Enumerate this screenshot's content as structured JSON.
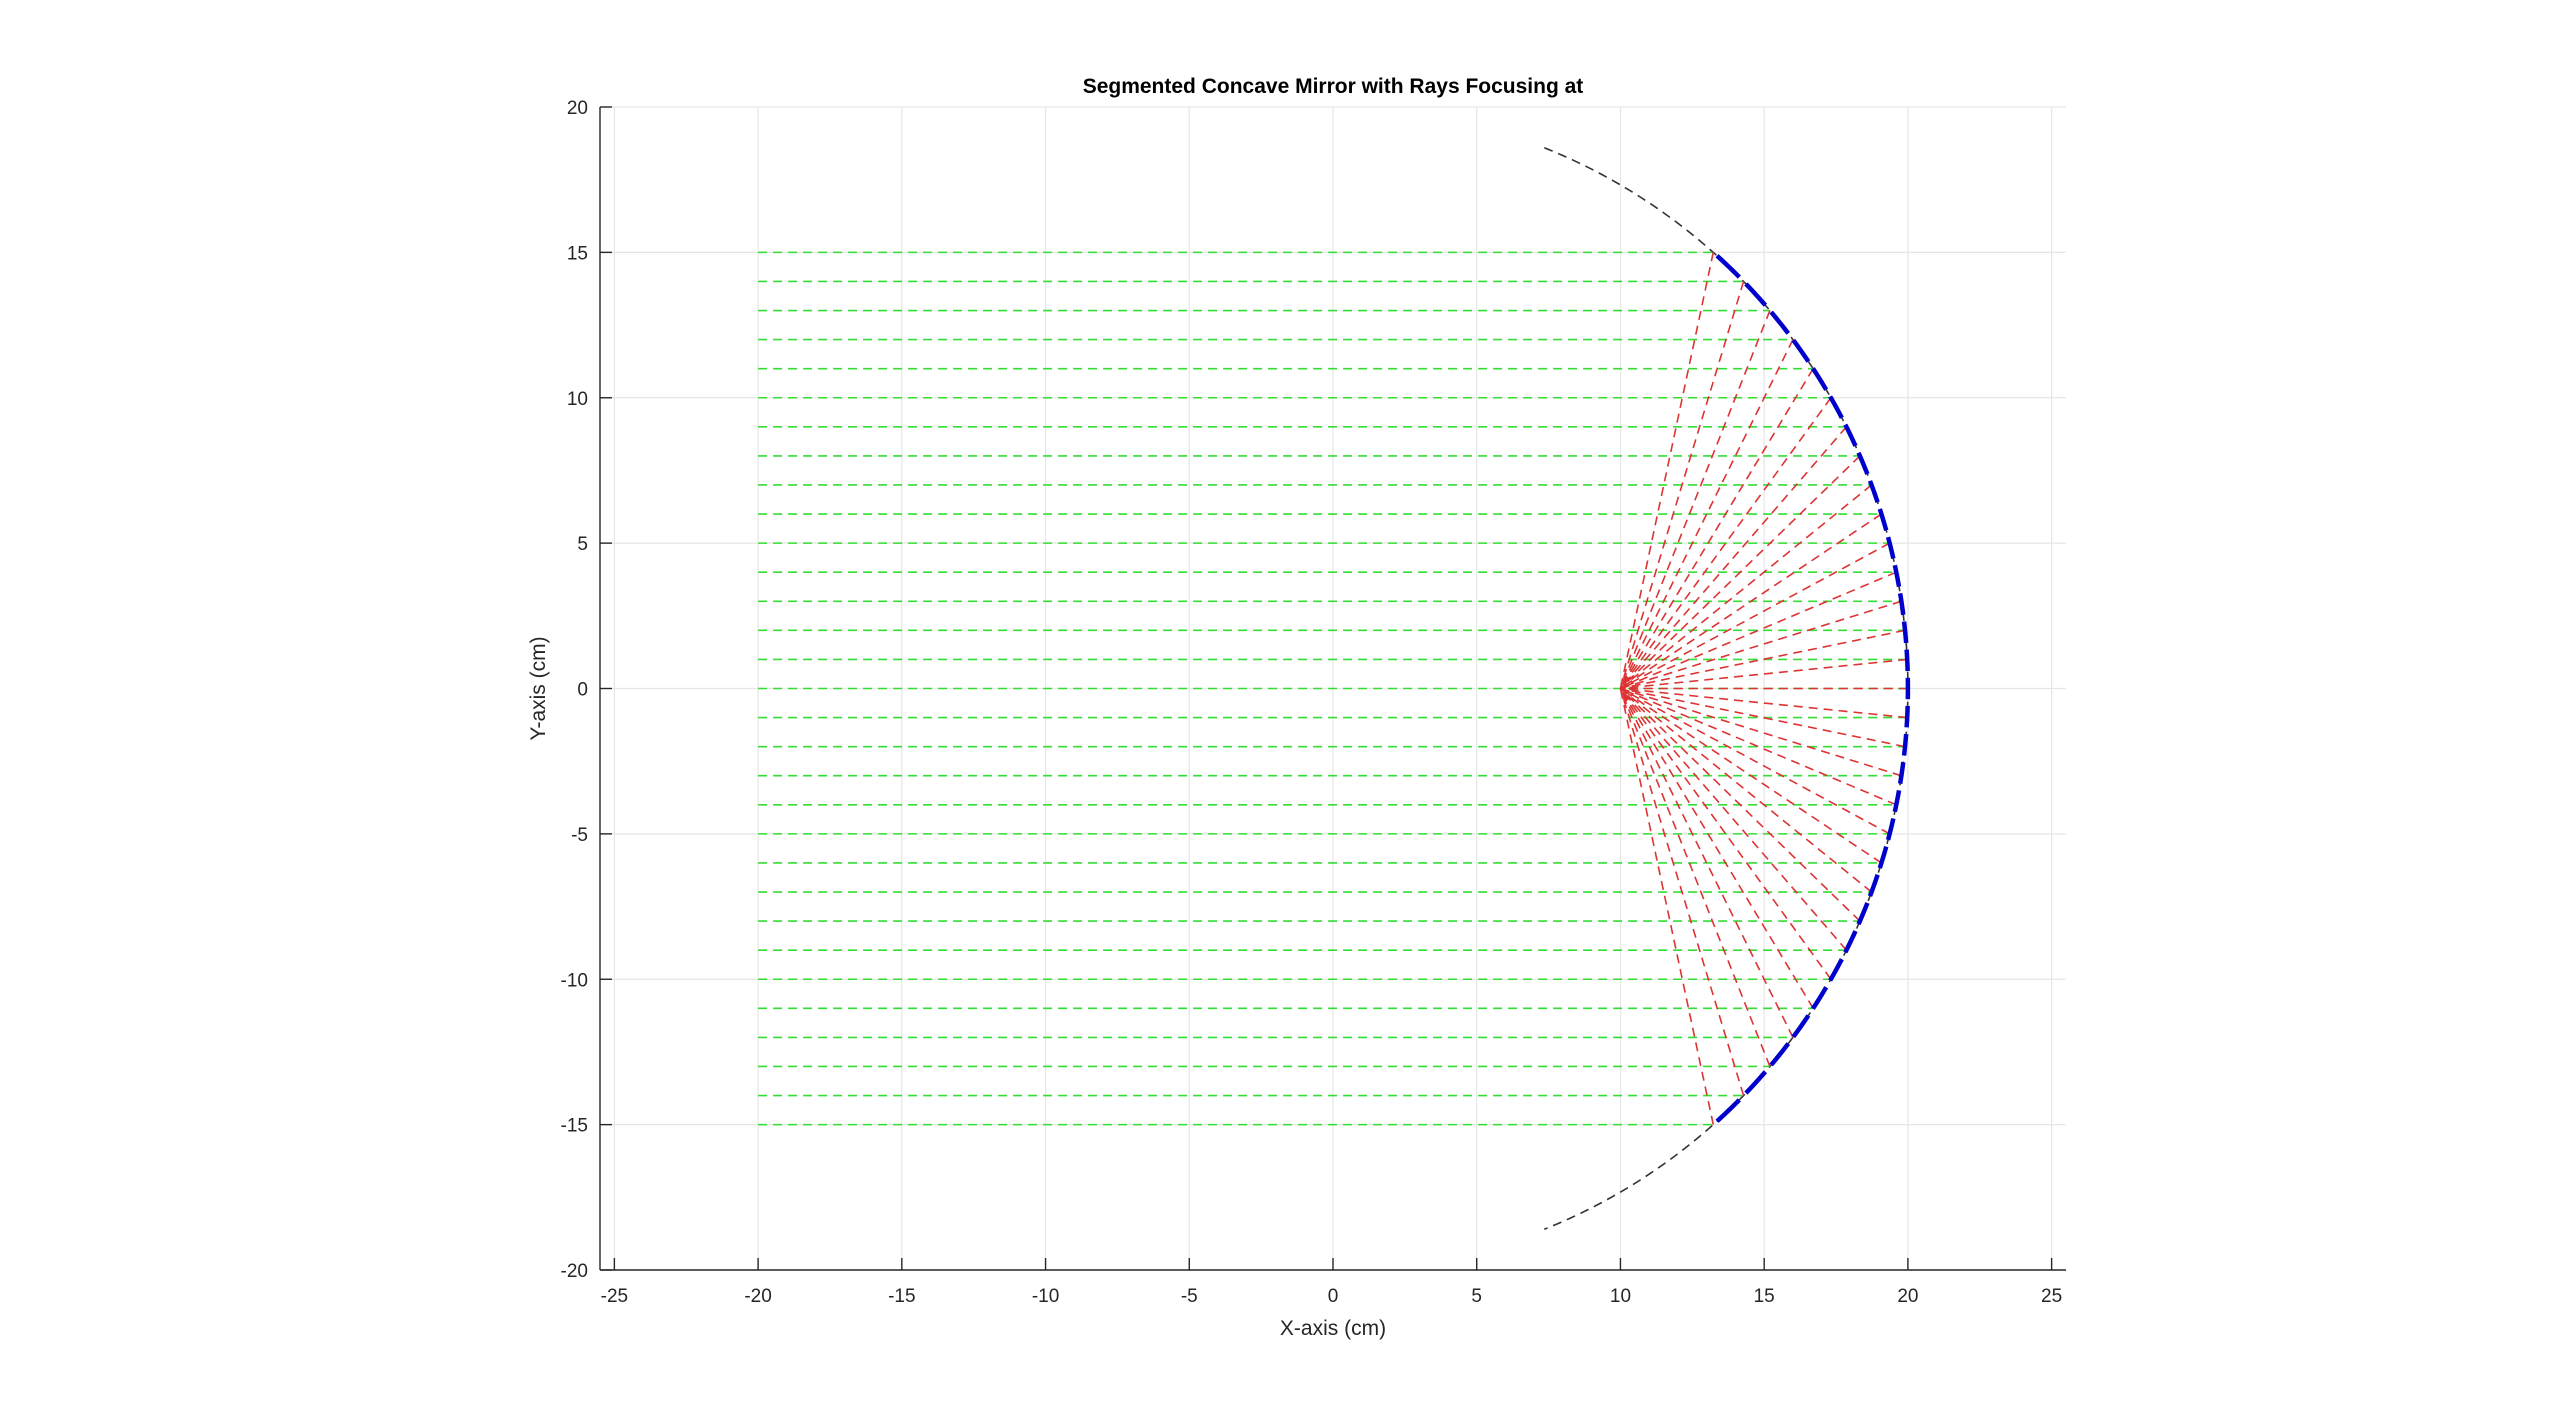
{
  "chart_data": {
    "type": "line",
    "title": "Segmented Concave Mirror with Rays Focusing at",
    "xlabel": "X-axis (cm)",
    "ylabel": "Y-axis (cm)",
    "xlim": [
      -25.5,
      25.5
    ],
    "ylim": [
      -20,
      20
    ],
    "xticks": [
      -25,
      -20,
      -15,
      -10,
      -5,
      0,
      5,
      10,
      15,
      20,
      25
    ],
    "yticks": [
      -20,
      -15,
      -10,
      -5,
      0,
      5,
      10,
      15,
      20
    ],
    "xtick_labels": [
      "-25",
      "-20",
      "-15",
      "-10",
      "-5",
      "0",
      "5",
      "10",
      "15",
      "20",
      "25"
    ],
    "ytick_labels": [
      "-20",
      "-15",
      "-10",
      "-5",
      "0",
      "5",
      "10",
      "15",
      "20"
    ],
    "grid": true,
    "mirror": {
      "center_x": 0,
      "radius": 20,
      "focus": [
        10,
        0
      ],
      "y_range": [
        -15,
        15
      ],
      "segments": 31
    },
    "reference_arc": {
      "center_x": 0,
      "radius": 20,
      "y_range": [
        -18.6,
        18.6
      ]
    },
    "incident_rays": {
      "x_start": -20,
      "y_values": [
        -15,
        -14,
        -13,
        -12,
        -11,
        -10,
        -9,
        -8,
        -7,
        -6,
        -5,
        -4,
        -3,
        -2,
        -1,
        0,
        1,
        2,
        3,
        4,
        5,
        6,
        7,
        8,
        9,
        10,
        11,
        12,
        13,
        14,
        15
      ]
    },
    "colors": {
      "mirror": "#0000cc",
      "reference_arc": "#333333",
      "incident": "#33dd33",
      "reflected": "#dd3333",
      "grid": "#e6e6e6",
      "axes": "#262626"
    }
  }
}
